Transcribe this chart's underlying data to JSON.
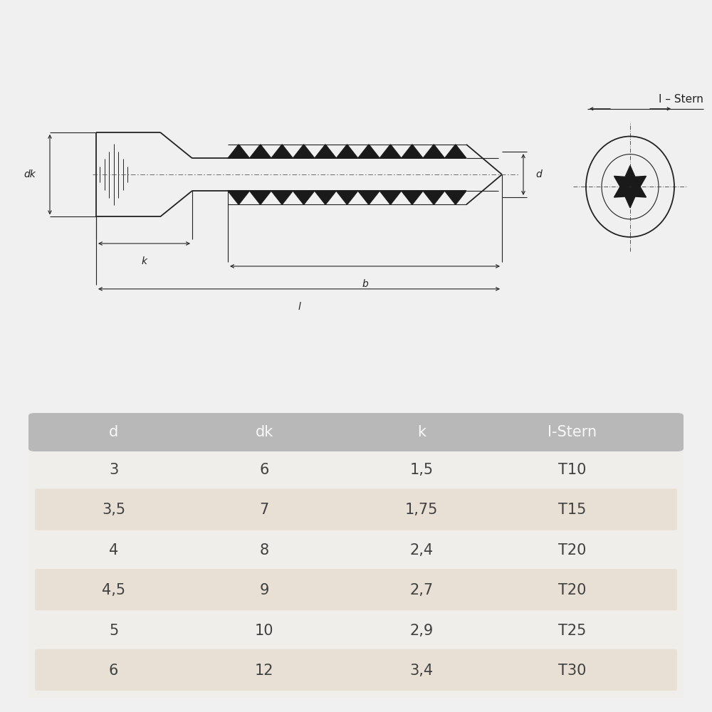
{
  "bg_color": "#f0f0f0",
  "drawing_bg": "#f8f8f8",
  "table_bg": "#e0e0e0",
  "row_bg_odd": "#ede8e0",
  "row_bg_even": "#f8f8f8",
  "header_bg": "#b8b8b8",
  "header_text_color": "#ffffff",
  "text_color": "#404040",
  "line_color": "#222222",
  "table_headers": [
    "d",
    "dk",
    "k",
    "I-Stern"
  ],
  "table_data": [
    [
      "3",
      "6",
      "1,5",
      "T10"
    ],
    [
      "3,5",
      "7",
      "1,75",
      "T15"
    ],
    [
      "4",
      "8",
      "2,4",
      "T20"
    ],
    [
      "4,5",
      "9",
      "2,7",
      "T20"
    ],
    [
      "5",
      "10",
      "2,9",
      "T25"
    ],
    [
      "6",
      "12",
      "3,4",
      "T30"
    ]
  ],
  "label_i_stern": "I – Stern",
  "label_d": "d",
  "label_dk": "dk",
  "label_k": "k",
  "label_b": "b",
  "label_l": "l"
}
